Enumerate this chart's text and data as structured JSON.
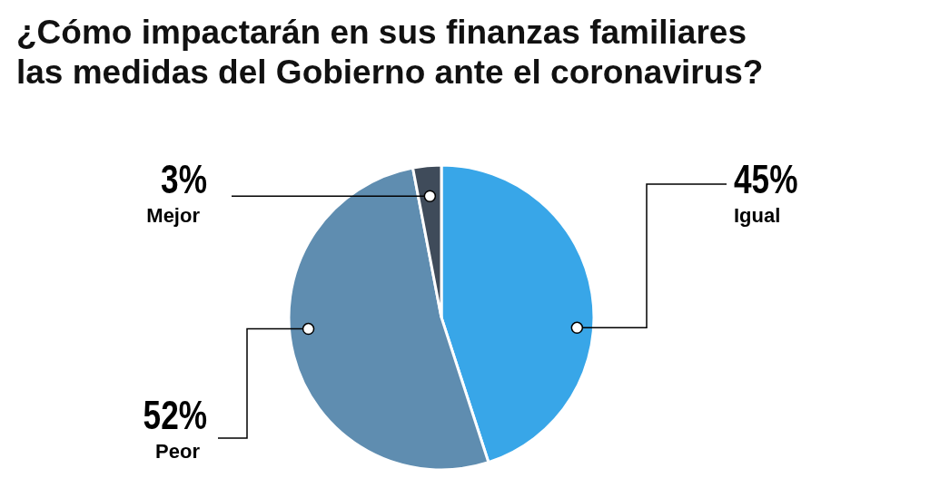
{
  "chart_data": {
    "type": "pie",
    "title": "¿Cómo impactarán en sus finanzas familiares las medidas del Gobierno ante el coronavirus?",
    "categories": [
      "Igual",
      "Peor",
      "Mejor"
    ],
    "values": [
      45,
      52,
      3
    ],
    "colors": [
      "#38a6e8",
      "#5f8db0",
      "#3f4b5a"
    ],
    "value_labels": [
      "45%",
      "52%",
      "3%"
    ]
  }
}
